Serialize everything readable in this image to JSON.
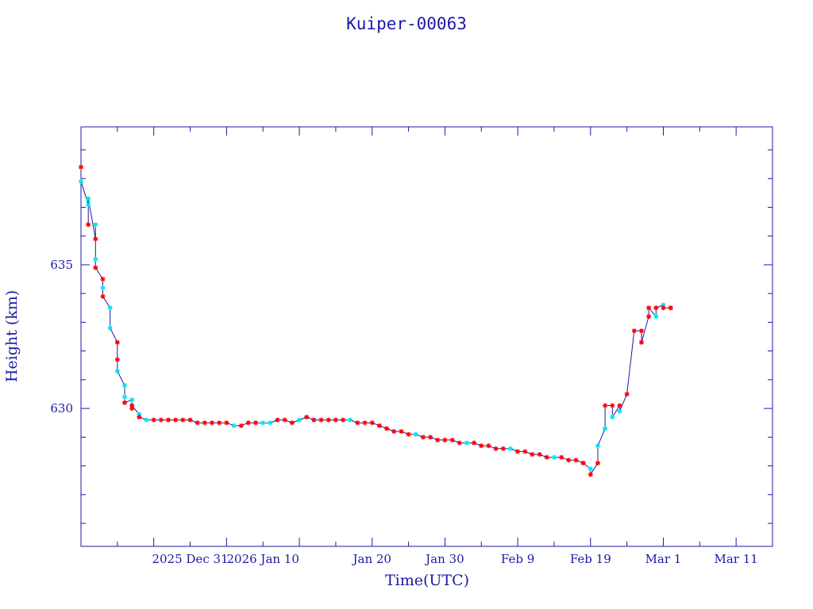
{
  "chart_data": {
    "type": "scatter",
    "title": "Kuiper-00063",
    "xlabel": "Time(UTC)",
    "ylabel": "Height (km)",
    "xlim": [
      "2025-12-11",
      "2026-03-16"
    ],
    "ylim": [
      625.2,
      639.8
    ],
    "x_tick_labels": [
      "2025 Dec 31",
      "2026 Jan 10",
      "Jan 20",
      "Jan 30",
      "Feb  9",
      "Feb 19",
      "Mar  1",
      "Mar 11"
    ],
    "y_tick_labels": [
      "630",
      "635"
    ],
    "grid": false,
    "colors": {
      "axis": "#1a1aa6",
      "line": "#1a1aa6",
      "marker_red": "#ff0000",
      "marker_cyan": "#00e5ee"
    },
    "series": [
      {
        "marker": "star",
        "points": [
          [
            "2025-12-11",
            638.4,
            "red"
          ],
          [
            "2025-12-11",
            637.9,
            "cyan"
          ],
          [
            "2025-12-12",
            637.1,
            "cyan"
          ],
          [
            "2025-12-12",
            636.4,
            "red"
          ],
          [
            "2025-12-12",
            637.3,
            "cyan"
          ],
          [
            "2025-12-13",
            635.9,
            "red"
          ],
          [
            "2025-12-13",
            636.4,
            "cyan"
          ],
          [
            "2025-12-13",
            635.2,
            "cyan"
          ],
          [
            "2025-12-13",
            634.9,
            "red"
          ],
          [
            "2025-12-14",
            634.5,
            "red"
          ],
          [
            "2025-12-14",
            634.2,
            "cyan"
          ],
          [
            "2025-12-14",
            633.9,
            "red"
          ],
          [
            "2025-12-15",
            633.5,
            "cyan"
          ],
          [
            "2025-12-15",
            632.8,
            "cyan"
          ],
          [
            "2025-12-16",
            632.3,
            "red"
          ],
          [
            "2025-12-16",
            631.7,
            "red"
          ],
          [
            "2025-12-16",
            631.3,
            "cyan"
          ],
          [
            "2025-12-17",
            630.8,
            "cyan"
          ],
          [
            "2025-12-17",
            630.4,
            "cyan"
          ],
          [
            "2025-12-17",
            630.2,
            "red"
          ],
          [
            "2025-12-18",
            630.3,
            "cyan"
          ],
          [
            "2025-12-18",
            630.0,
            "red"
          ],
          [
            "2025-12-18",
            630.1,
            "red"
          ],
          [
            "2025-12-19",
            629.8,
            "cyan"
          ],
          [
            "2025-12-19",
            629.7,
            "red"
          ],
          [
            "2025-12-20",
            629.6,
            "cyan"
          ],
          [
            "2025-12-21",
            629.6,
            "red"
          ],
          [
            "2025-12-22",
            629.6,
            "red"
          ],
          [
            "2025-12-23",
            629.6,
            "red"
          ],
          [
            "2025-12-24",
            629.6,
            "red"
          ],
          [
            "2025-12-25",
            629.6,
            "red"
          ],
          [
            "2025-12-26",
            629.6,
            "red"
          ],
          [
            "2025-12-27",
            629.5,
            "red"
          ],
          [
            "2025-12-28",
            629.5,
            "red"
          ],
          [
            "2025-12-29",
            629.5,
            "red"
          ],
          [
            "2025-12-30",
            629.5,
            "red"
          ],
          [
            "2025-12-31",
            629.5,
            "red"
          ],
          [
            "2026-01-01",
            629.4,
            "cyan"
          ],
          [
            "2026-01-02",
            629.4,
            "red"
          ],
          [
            "2026-01-03",
            629.5,
            "red"
          ],
          [
            "2026-01-04",
            629.5,
            "red"
          ],
          [
            "2026-01-05",
            629.5,
            "cyan"
          ],
          [
            "2026-01-06",
            629.5,
            "cyan"
          ],
          [
            "2026-01-07",
            629.6,
            "red"
          ],
          [
            "2026-01-08",
            629.6,
            "red"
          ],
          [
            "2026-01-09",
            629.5,
            "red"
          ],
          [
            "2026-01-10",
            629.6,
            "cyan"
          ],
          [
            "2026-01-11",
            629.7,
            "red"
          ],
          [
            "2026-01-12",
            629.6,
            "red"
          ],
          [
            "2026-01-13",
            629.6,
            "red"
          ],
          [
            "2026-01-14",
            629.6,
            "red"
          ],
          [
            "2026-01-15",
            629.6,
            "red"
          ],
          [
            "2026-01-16",
            629.6,
            "red"
          ],
          [
            "2026-01-17",
            629.6,
            "cyan"
          ],
          [
            "2026-01-18",
            629.5,
            "red"
          ],
          [
            "2026-01-19",
            629.5,
            "red"
          ],
          [
            "2026-01-20",
            629.5,
            "red"
          ],
          [
            "2026-01-21",
            629.4,
            "red"
          ],
          [
            "2026-01-22",
            629.3,
            "red"
          ],
          [
            "2026-01-23",
            629.2,
            "red"
          ],
          [
            "2026-01-24",
            629.2,
            "red"
          ],
          [
            "2026-01-25",
            629.1,
            "red"
          ],
          [
            "2026-01-26",
            629.1,
            "cyan"
          ],
          [
            "2026-01-27",
            629.0,
            "red"
          ],
          [
            "2026-01-28",
            629.0,
            "red"
          ],
          [
            "2026-01-29",
            628.9,
            "red"
          ],
          [
            "2026-01-30",
            628.9,
            "red"
          ],
          [
            "2026-01-31",
            628.9,
            "red"
          ],
          [
            "2026-02-01",
            628.8,
            "red"
          ],
          [
            "2026-02-02",
            628.8,
            "cyan"
          ],
          [
            "2026-02-03",
            628.8,
            "red"
          ],
          [
            "2026-02-04",
            628.7,
            "red"
          ],
          [
            "2026-02-05",
            628.7,
            "red"
          ],
          [
            "2026-02-06",
            628.6,
            "red"
          ],
          [
            "2026-02-07",
            628.6,
            "red"
          ],
          [
            "2026-02-08",
            628.6,
            "cyan"
          ],
          [
            "2026-02-09",
            628.5,
            "red"
          ],
          [
            "2026-02-10",
            628.5,
            "red"
          ],
          [
            "2026-02-11",
            628.4,
            "red"
          ],
          [
            "2026-02-12",
            628.4,
            "red"
          ],
          [
            "2026-02-13",
            628.3,
            "red"
          ],
          [
            "2026-02-14",
            628.3,
            "cyan"
          ],
          [
            "2026-02-15",
            628.3,
            "red"
          ],
          [
            "2026-02-16",
            628.2,
            "red"
          ],
          [
            "2026-02-17",
            628.2,
            "red"
          ],
          [
            "2026-02-18",
            628.1,
            "red"
          ],
          [
            "2026-02-18",
            628.1,
            "red"
          ],
          [
            "2026-02-19",
            627.9,
            "cyan"
          ],
          [
            "2026-02-19",
            627.7,
            "red"
          ],
          [
            "2026-02-20",
            628.1,
            "red"
          ],
          [
            "2026-02-20",
            628.7,
            "cyan"
          ],
          [
            "2026-02-21",
            629.3,
            "cyan"
          ],
          [
            "2026-02-21",
            630.1,
            "red"
          ],
          [
            "2026-02-22",
            630.1,
            "red"
          ],
          [
            "2026-02-22",
            629.7,
            "cyan"
          ],
          [
            "2026-02-23",
            630.1,
            "red"
          ],
          [
            "2026-02-23",
            629.9,
            "cyan"
          ],
          [
            "2026-02-24",
            630.5,
            "red"
          ],
          [
            "2026-02-25",
            632.7,
            "red"
          ],
          [
            "2026-02-26",
            632.7,
            "red"
          ],
          [
            "2026-02-26",
            632.3,
            "red"
          ],
          [
            "2026-02-27",
            633.2,
            "red"
          ],
          [
            "2026-02-27",
            633.5,
            "red"
          ],
          [
            "2026-02-28",
            633.2,
            "cyan"
          ],
          [
            "2026-02-28",
            633.5,
            "red"
          ],
          [
            "2026-03-01",
            633.6,
            "cyan"
          ],
          [
            "2026-03-01",
            633.5,
            "red"
          ],
          [
            "2026-03-02",
            633.5,
            "red"
          ],
          [
            "2026-03-02",
            633.5,
            "red"
          ]
        ]
      }
    ]
  }
}
